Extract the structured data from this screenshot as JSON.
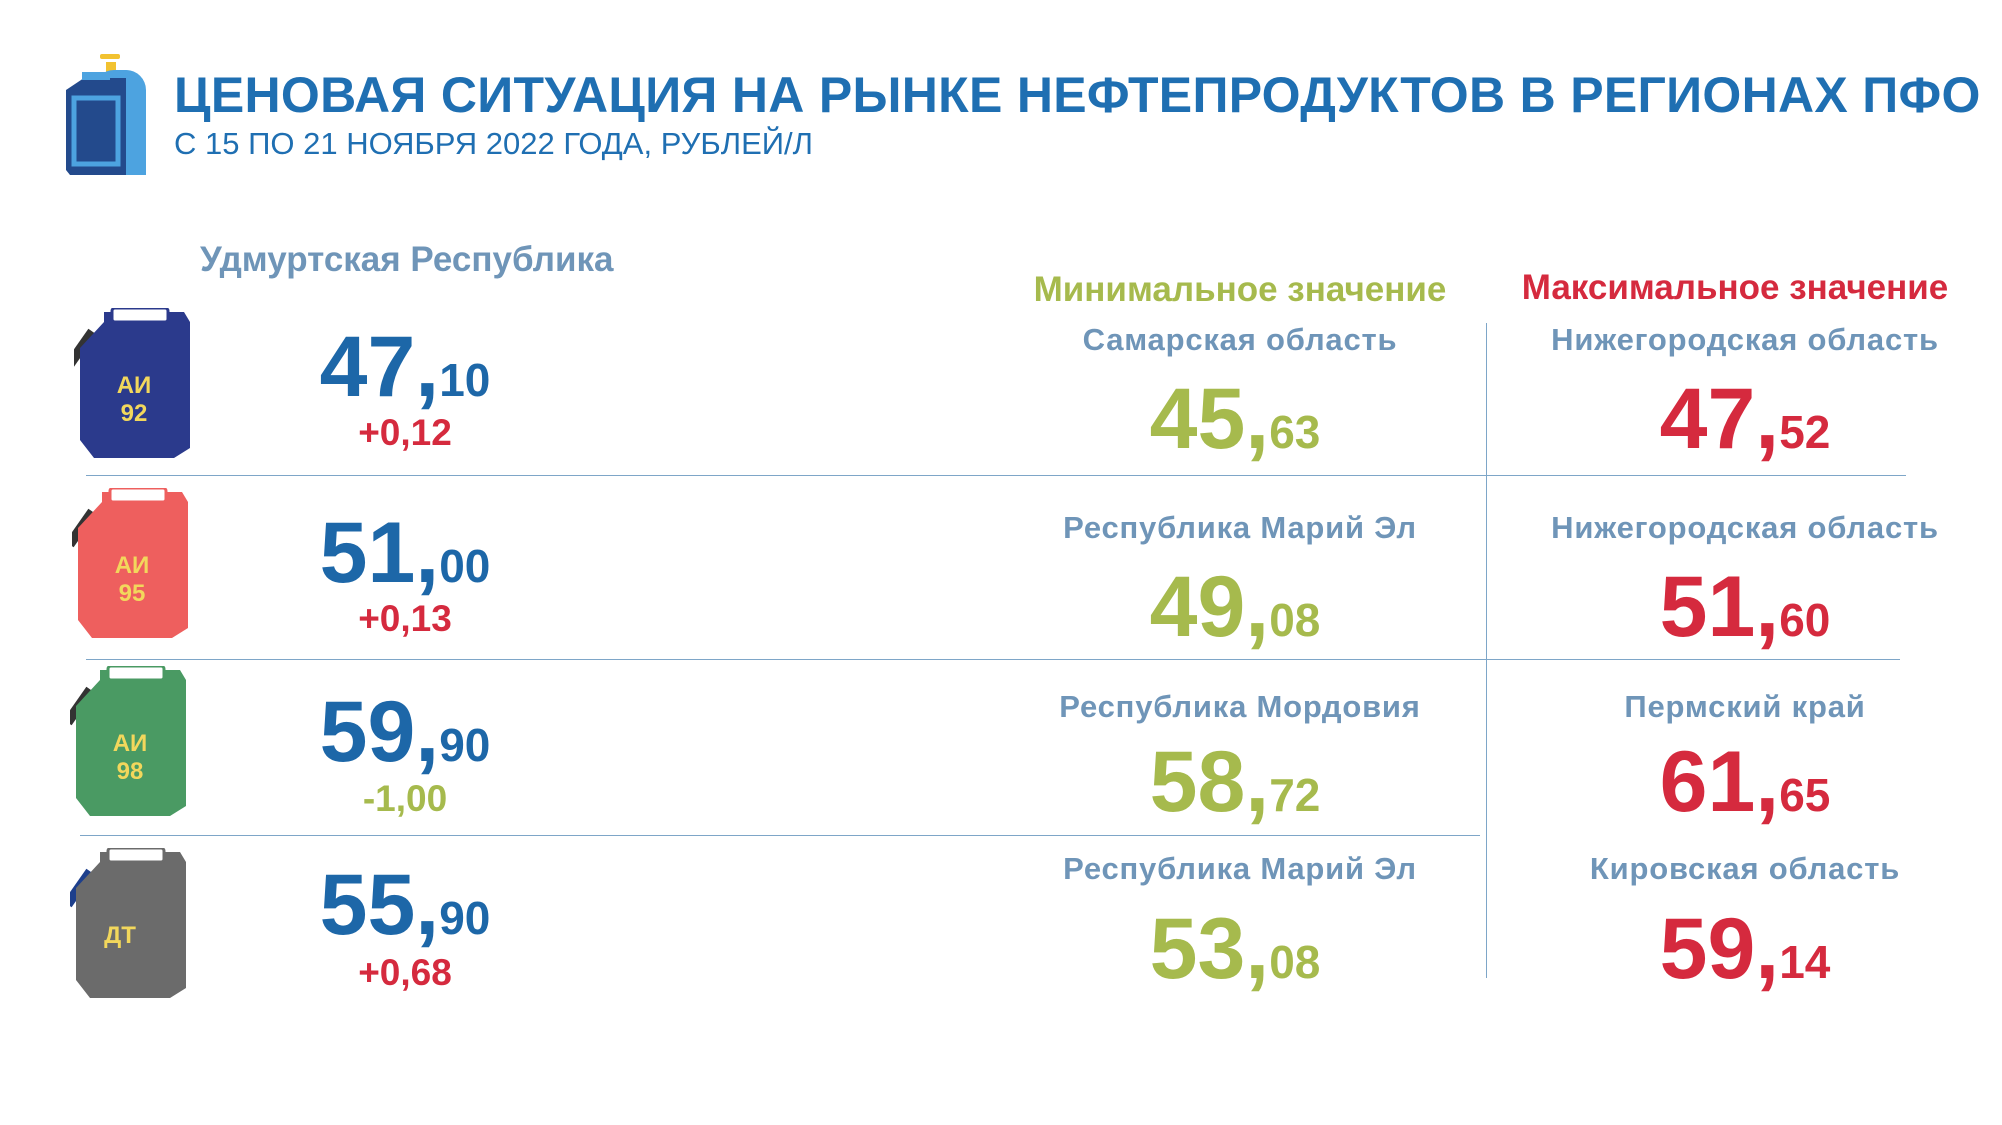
{
  "header": {
    "title": "ЦЕНОВАЯ СИТУАЦИЯ НА РЫНКЕ НЕФТЕПРОДУКТОВ В РЕГИОНАХ ПФО",
    "subtitle": "С 15 ПО 21 НОЯБРЯ 2022 ГОДА, РУБЛЕЙ/Л",
    "icon": "fuel-canister-gas-cylinder-icon"
  },
  "columns": {
    "region": "Удмуртская Республика",
    "min": "Минимальное значение",
    "max": "Максимальное значение"
  },
  "colors": {
    "primary": "#1d67a8",
    "min": "#a6ba4d",
    "max": "#d52a3e",
    "region_text": "#6f95b8",
    "ai92": "#2b3a8c",
    "ai95": "#ee5f5e",
    "ai98": "#4a9a63",
    "dt": "#6b6b6b"
  },
  "rows": [
    {
      "fuel": {
        "line1": "АИ",
        "line2": "92"
      },
      "price": {
        "int": "47",
        "dec": "10"
      },
      "change": "+0,12",
      "min": {
        "region": "Самарская область",
        "int": "45",
        "dec": "63"
      },
      "max": {
        "region": "Нижегородская область",
        "int": "47",
        "dec": "52"
      }
    },
    {
      "fuel": {
        "line1": "АИ",
        "line2": "95"
      },
      "price": {
        "int": "51",
        "dec": "00"
      },
      "change": "+0,13",
      "min": {
        "region": "Республика Марий Эл",
        "int": "49",
        "dec": "08"
      },
      "max": {
        "region": "Нижегородская область",
        "int": "51",
        "dec": "60"
      }
    },
    {
      "fuel": {
        "line1": "АИ",
        "line2": "98"
      },
      "price": {
        "int": "59",
        "dec": "90"
      },
      "change": "-1,00",
      "min": {
        "region": "Республика Мордовия",
        "int": "58",
        "dec": "72"
      },
      "max": {
        "region": "Пермский край",
        "int": "61",
        "dec": "65"
      }
    },
    {
      "fuel": {
        "line1": "ДТ",
        "line2": ""
      },
      "price": {
        "int": "55",
        "dec": "90"
      },
      "change": "+0,68",
      "min": {
        "region": "Республика Марий Эл",
        "int": "53",
        "dec": "08"
      },
      "max": {
        "region": "Кировская область",
        "int": "59",
        "dec": "14"
      }
    }
  ]
}
